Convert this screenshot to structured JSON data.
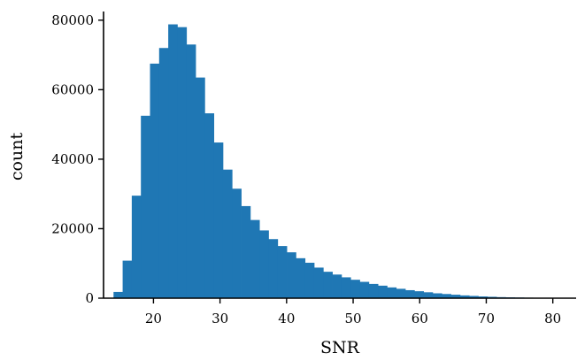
{
  "chart_data": {
    "type": "bar",
    "title": "",
    "xlabel": "SNR",
    "ylabel": "count",
    "xlim": [
      12.5,
      83.5
    ],
    "ylim": [
      0,
      82500
    ],
    "xticks": [
      20,
      30,
      40,
      50,
      60,
      70,
      80
    ],
    "yticks": [
      0,
      20000,
      40000,
      60000,
      80000
    ],
    "bar_color": "#1f77b4",
    "grid": false,
    "bin_width": 1.37,
    "bin_starts": [
      14.0,
      15.37,
      16.74,
      18.11,
      19.48,
      20.85,
      22.22,
      23.59,
      24.96,
      26.33,
      27.7,
      29.07,
      30.44,
      31.81,
      33.18,
      34.55,
      35.92,
      37.29,
      38.66,
      40.03,
      41.4,
      42.77,
      44.14,
      45.51,
      46.88,
      48.25,
      49.62,
      50.99,
      52.36,
      53.73,
      55.1,
      56.47,
      57.84,
      59.21,
      60.58,
      61.95,
      63.32,
      64.69,
      66.06,
      67.43,
      68.8,
      70.17,
      71.54,
      72.91,
      74.28,
      75.65,
      77.02,
      78.39,
      79.76,
      81.13
    ],
    "counts": [
      1800,
      10800,
      29500,
      52500,
      67500,
      72000,
      78800,
      78000,
      73000,
      63500,
      53200,
      44800,
      37000,
      31500,
      26500,
      22500,
      19500,
      17000,
      15000,
      13200,
      11500,
      10200,
      8800,
      7600,
      6800,
      6000,
      5300,
      4700,
      4100,
      3600,
      3100,
      2700,
      2300,
      2000,
      1700,
      1400,
      1200,
      1000,
      800,
      650,
      500,
      400,
      300,
      250,
      200,
      150,
      120,
      100,
      80,
      60
    ]
  }
}
